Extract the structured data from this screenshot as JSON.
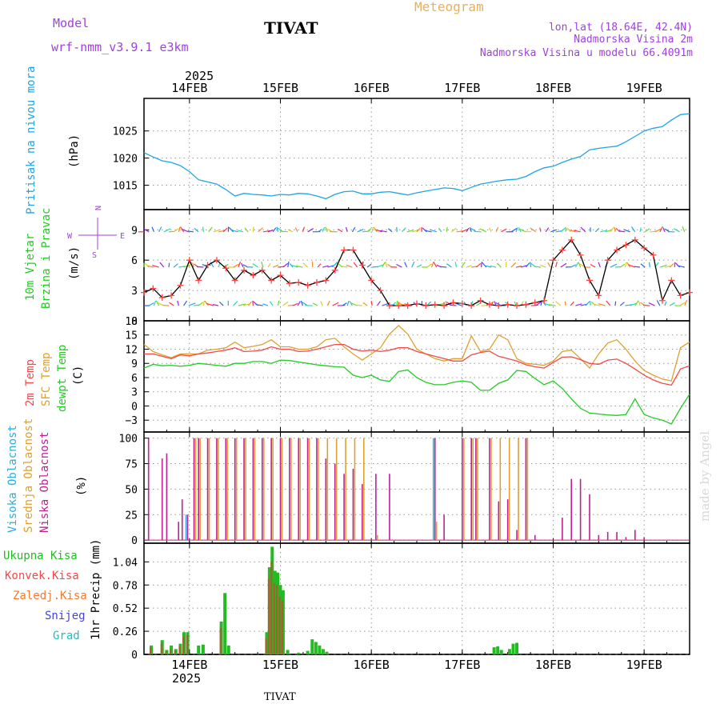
{
  "header": {
    "left_label": "Model",
    "model": "wrf-nmm_v3.9.1  e3km",
    "title": "TIVAT",
    "center_title": "Meteogram",
    "lonlat": "lon,lat (18.64E, 42.4N)",
    "elevation": "Nadmorska Visina 2m",
    "model_elevation": "Nadmorska Visina u modelu 66.4091m",
    "footer_station": "TIVAT",
    "watermark": "made by Angel"
  },
  "colors": {
    "pressure": "#1fa5e6",
    "wind_speed_black": "#000000",
    "wind_markers": "#ff4444",
    "temp2m": "#f04a4a",
    "sfc_temp": "#e0a030",
    "dewpt": "#22cc22",
    "cloud_high": "#2aaee0",
    "cloud_mid": "#e0a030",
    "cloud_low": "#c02090",
    "precip_total": "#22bb22",
    "precip_conv": "#f04a4a",
    "label_purple": "#a040e0"
  },
  "chart_data": [
    {
      "type": "line",
      "panel": "pressure",
      "title": "",
      "year_label": "2025",
      "ylabel_left": "Pritisak na nivou mora",
      "ylabel_unit": "(hPa)",
      "xlim": [
        -0.5,
        5.5
      ],
      "ylim": [
        1010.5,
        1031
      ],
      "x_ticks": [
        0,
        1,
        2,
        3,
        4,
        5
      ],
      "x_tick_labels": [
        "14FEB",
        "15FEB",
        "16FEB",
        "17FEB",
        "18FEB",
        "19FEB"
      ],
      "y_ticks": [
        1015,
        1020,
        1025
      ],
      "y_tick_labels": [
        "1015",
        "1020",
        "1025"
      ],
      "x": [
        -0.5,
        -0.4,
        -0.3,
        -0.2,
        -0.1,
        0,
        0.1,
        0.2,
        0.3,
        0.4,
        0.5,
        0.6,
        0.7,
        0.8,
        0.9,
        1,
        1.1,
        1.2,
        1.3,
        1.4,
        1.5,
        1.6,
        1.7,
        1.8,
        1.9,
        2,
        2.1,
        2.2,
        2.3,
        2.4,
        2.5,
        2.6,
        2.7,
        2.8,
        2.9,
        3,
        3.1,
        3.2,
        3.3,
        3.4,
        3.5,
        3.6,
        3.7,
        3.8,
        3.9,
        4,
        4.1,
        4.2,
        4.3,
        4.4,
        4.5,
        4.6,
        4.7,
        4.8,
        4.9,
        5,
        5.1,
        5.2,
        5.3,
        5.4,
        5.5
      ],
      "series": [
        {
          "name": "Pritisak",
          "values": [
            1021,
            1020.2,
            1019.5,
            1019.2,
            1018.6,
            1017.5,
            1016,
            1015.6,
            1015.2,
            1014.2,
            1013,
            1013.5,
            1013.3,
            1013.2,
            1013,
            1013.3,
            1013.2,
            1013.5,
            1013.4,
            1013,
            1012.5,
            1013.3,
            1013.8,
            1013.9,
            1013.4,
            1013.4,
            1013.7,
            1013.8,
            1013.5,
            1013.2,
            1013.6,
            1013.9,
            1014.2,
            1014.5,
            1014.4,
            1014,
            1014.6,
            1015.2,
            1015.5,
            1015.8,
            1016,
            1016.1,
            1016.6,
            1017.5,
            1018.2,
            1018.5,
            1019.2,
            1019.8,
            1020.3,
            1021.5,
            1021.8,
            1022,
            1022.2,
            1023,
            1024,
            1025,
            1025.5,
            1025.8,
            1027,
            1028,
            1028.2
          ]
        }
      ]
    },
    {
      "type": "line",
      "panel": "wind",
      "ylabel_left": [
        "10m Vjetar",
        "Brzina i Pravac"
      ],
      "ylabel_unit": "(m/s)",
      "compass": {
        "n": "N",
        "w": "W",
        "e": "E",
        "s": "S"
      },
      "xlim": [
        -0.5,
        5.5
      ],
      "ylim": [
        0,
        11
      ],
      "y_ticks": [
        0,
        3,
        6,
        9
      ],
      "y_tick_labels": [
        "0",
        "3",
        "6",
        "9"
      ],
      "x": [
        -0.5,
        -0.4,
        -0.3,
        -0.2,
        -0.1,
        0,
        0.1,
        0.2,
        0.3,
        0.4,
        0.5,
        0.6,
        0.7,
        0.8,
        0.9,
        1,
        1.1,
        1.2,
        1.3,
        1.4,
        1.5,
        1.6,
        1.7,
        1.8,
        1.9,
        2,
        2.1,
        2.2,
        2.3,
        2.4,
        2.5,
        2.6,
        2.7,
        2.8,
        2.9,
        3,
        3.1,
        3.2,
        3.3,
        3.4,
        3.5,
        3.6,
        3.7,
        3.8,
        3.9,
        4,
        4.1,
        4.2,
        4.3,
        4.4,
        4.5,
        4.6,
        4.7,
        4.8,
        4.9,
        5,
        5.1,
        5.2,
        5.3,
        5.4,
        5.5
      ],
      "series": [
        {
          "name": "Brzina",
          "values": [
            2.8,
            3.2,
            2.3,
            2.5,
            3.5,
            6,
            4,
            5.5,
            6,
            5.2,
            4,
            5,
            4.5,
            5,
            4,
            4.5,
            3.7,
            3.8,
            3.5,
            3.8,
            4,
            5,
            7,
            7,
            5.5,
            4,
            3,
            1.5,
            1.5,
            1.5,
            1.7,
            1.5,
            1.6,
            1.5,
            1.8,
            1.7,
            1.5,
            2,
            1.6,
            1.5,
            1.6,
            1.5,
            1.6,
            1.8,
            2,
            6,
            7,
            8,
            6.5,
            4,
            2.5,
            6,
            7,
            7.5,
            8,
            7.2,
            6.5,
            2,
            4,
            2.5,
            2.8
          ]
        }
      ],
      "arrow_rows": [
        1.5,
        5.3,
        8.8
      ]
    },
    {
      "type": "line",
      "panel": "temperature",
      "ylabel_left": [
        "2m Temp",
        "SFC Temp",
        "dewpt Temp"
      ],
      "ylabel_unit": "(C)",
      "xlim": [
        -0.5,
        5.5
      ],
      "ylim": [
        -5.5,
        18
      ],
      "y_ticks": [
        -3,
        0,
        3,
        6,
        9,
        12,
        15,
        18
      ],
      "y_tick_labels": [
        "−3",
        "0",
        "3",
        "6",
        "9",
        "12",
        "15",
        "18"
      ],
      "x": [
        -0.5,
        -0.4,
        -0.3,
        -0.2,
        -0.1,
        0,
        0.1,
        0.2,
        0.3,
        0.4,
        0.5,
        0.6,
        0.7,
        0.8,
        0.9,
        1,
        1.1,
        1.2,
        1.3,
        1.4,
        1.5,
        1.6,
        1.7,
        1.8,
        1.9,
        2,
        2.1,
        2.2,
        2.3,
        2.4,
        2.5,
        2.6,
        2.7,
        2.8,
        2.9,
        3,
        3.1,
        3.2,
        3.3,
        3.4,
        3.5,
        3.6,
        3.7,
        3.8,
        3.9,
        4,
        4.1,
        4.2,
        4.3,
        4.4,
        4.5,
        4.6,
        4.7,
        4.8,
        4.9,
        5,
        5.1,
        5.2,
        5.3,
        5.4,
        5.5
      ],
      "series": [
        {
          "name": "2m Temp",
          "values": [
            11,
            11,
            10.5,
            10,
            10.8,
            10.6,
            11,
            11.2,
            11.5,
            11.8,
            12.3,
            11.5,
            11.6,
            11.8,
            12.5,
            12,
            12,
            11.5,
            11.6,
            12,
            12.5,
            13,
            13,
            12,
            11.6,
            11.8,
            11.5,
            11.8,
            12.3,
            12.3,
            11.5,
            11,
            10.5,
            10,
            9.5,
            9.5,
            10.8,
            11.3,
            11.6,
            10.5,
            10,
            9.5,
            8.7,
            8.3,
            8,
            9.2,
            10.3,
            10.4,
            9.8,
            9,
            8.8,
            9.7,
            9.9,
            9,
            7.8,
            6.5,
            5.5,
            4.8,
            4.4,
            7.8,
            8.5
          ]
        },
        {
          "name": "SFC Temp",
          "values": [
            13,
            11.5,
            10.8,
            10.2,
            11,
            11,
            11,
            11.8,
            12,
            12.3,
            13.5,
            12.3,
            12.6,
            13,
            14,
            12.5,
            12.5,
            12,
            12,
            12.5,
            14,
            14.3,
            12.5,
            11,
            9.7,
            11,
            12.3,
            15.2,
            17,
            15.2,
            12,
            11,
            10,
            9.5,
            10,
            10,
            14.8,
            11.5,
            12,
            15,
            14,
            10,
            9,
            8.8,
            8.6,
            9.5,
            11.5,
            11.8,
            10,
            8,
            11,
            13.3,
            14,
            12,
            9.5,
            7.5,
            6.5,
            5.7,
            5.3,
            12.3,
            13.5
          ]
        },
        {
          "name": "dewpt Temp",
          "values": [
            8,
            8.8,
            8.5,
            8.6,
            8.4,
            8.6,
            9,
            8.8,
            8.6,
            8.4,
            9,
            9,
            9.4,
            9.4,
            9,
            9.7,
            9.6,
            9.3,
            9,
            8.7,
            8.5,
            8.3,
            8.2,
            6.5,
            6,
            6.5,
            5.5,
            5.2,
            7.3,
            7.6,
            6,
            5,
            4.5,
            4.5,
            5,
            5.3,
            5,
            3.3,
            3.3,
            4.8,
            5.5,
            7.5,
            7.3,
            5.8,
            4.5,
            5.3,
            3.7,
            1.5,
            -0.5,
            -1.5,
            -1.7,
            -1.9,
            -2,
            -1.8,
            1.5,
            -1.8,
            -2.5,
            -3,
            -3.8,
            -0.5,
            2.5
          ]
        }
      ]
    },
    {
      "type": "bar",
      "panel": "clouds",
      "ylabel_left": [
        "Visoka Oblacnost",
        "Srednja Oblacnost",
        "Niska  Oblacnost"
      ],
      "ylabel_unit": "(%)",
      "xlim": [
        -0.5,
        5.5
      ],
      "ylim": [
        -3,
        106
      ],
      "y_ticks": [
        0,
        25,
        50,
        75,
        100
      ],
      "y_tick_labels": [
        "0",
        "25",
        "50",
        "75",
        "100"
      ],
      "x": [
        -0.45,
        -0.3,
        -0.25,
        -0.12,
        -0.08,
        -0.02,
        0.05,
        0.1,
        0.2,
        0.3,
        0.4,
        0.5,
        0.6,
        0.7,
        0.8,
        0.9,
        1.0,
        1.1,
        1.2,
        1.3,
        1.4,
        1.5,
        1.6,
        1.7,
        1.8,
        1.9,
        2.05,
        2.2,
        2.7,
        2.8,
        3.0,
        3.1,
        3.15,
        3.3,
        3.4,
        3.5,
        3.6,
        3.7,
        3.8,
        3.9,
        4.0,
        4.1,
        4.2,
        4.3,
        4.4,
        4.5,
        4.6,
        4.7,
        4.8,
        4.9,
        5.0
      ],
      "series": [
        {
          "name": "Niska Oblacnost",
          "values": [
            100,
            80,
            85,
            18,
            40,
            25,
            100,
            100,
            100,
            100,
            100,
            100,
            100,
            100,
            100,
            100,
            100,
            100,
            100,
            100,
            100,
            80,
            75,
            65,
            70,
            55,
            65,
            65,
            100,
            25,
            100,
            100,
            100,
            100,
            38,
            40,
            10,
            100,
            5,
            0,
            0,
            22,
            60,
            60,
            45,
            5,
            8,
            8,
            3,
            10,
            3
          ]
        },
        {
          "name": "Srednja Oblacnost",
          "values": [
            0,
            0,
            0,
            0,
            0,
            0,
            100,
            100,
            100,
            100,
            100,
            100,
            100,
            100,
            100,
            100,
            100,
            100,
            100,
            100,
            100,
            100,
            100,
            100,
            100,
            100,
            5,
            0,
            18,
            0,
            100,
            100,
            100,
            100,
            100,
            100,
            100,
            100,
            0,
            0,
            0,
            0,
            0,
            0,
            0,
            0,
            0,
            0,
            0,
            0,
            0
          ]
        },
        {
          "name": "Visoka Oblacnost",
          "values": [
            0,
            0,
            0,
            0,
            0,
            25,
            0,
            0,
            0,
            0,
            0,
            0,
            0,
            0,
            0,
            0,
            0,
            0,
            0,
            0,
            0,
            0,
            0,
            0,
            0,
            0,
            0,
            0,
            100,
            0,
            0,
            0,
            0,
            0,
            0,
            0,
            0,
            0,
            0,
            0,
            0,
            0,
            0,
            0,
            0,
            0,
            0,
            0,
            0,
            0,
            0
          ]
        }
      ]
    },
    {
      "type": "bar",
      "panel": "precip",
      "ylabel_left": [
        "Ukupna  Kisa",
        "Konvek.Kisa",
        "Zaledj.Kisa",
        "Snijeg",
        "Grad"
      ],
      "ylabel_unit": "1hr Precip (mm)",
      "xlim": [
        -0.5,
        5.5
      ],
      "ylim": [
        0,
        1.25
      ],
      "y_ticks": [
        0,
        0.26,
        0.52,
        0.78,
        1.04
      ],
      "y_tick_labels": [
        "0",
        "0.26",
        "0.52",
        "0.78",
        "1.04"
      ],
      "x_ticks": [
        0,
        1,
        2,
        3,
        4,
        5
      ],
      "x_tick_labels": [
        "14FEB",
        "15FEB",
        "16FEB",
        "17FEB",
        "18FEB",
        "19FEB"
      ],
      "year_label": "2025",
      "x": [
        -0.42,
        -0.3,
        -0.25,
        -0.2,
        -0.15,
        -0.1,
        -0.06,
        -0.02,
        0.1,
        0.15,
        0.35,
        0.39,
        0.43,
        0.85,
        0.88,
        0.91,
        0.94,
        0.97,
        1.0,
        1.03,
        1.08,
        1.2,
        1.3,
        1.35,
        1.39,
        1.43,
        1.47,
        1.51,
        3.35,
        3.39,
        3.43,
        3.52,
        3.56,
        3.6
      ],
      "series": [
        {
          "name": "Ukupna Kisa",
          "values": [
            0.1,
            0.16,
            0.05,
            0.1,
            0.06,
            0.12,
            0.25,
            0.25,
            0.1,
            0.11,
            0.37,
            0.69,
            0.1,
            0.25,
            0.98,
            1.21,
            0.94,
            0.92,
            0.78,
            0.72,
            0.05,
            0.02,
            0.04,
            0.17,
            0.14,
            0.1,
            0.06,
            0.03,
            0.08,
            0.09,
            0.05,
            0.06,
            0.12,
            0.13
          ]
        },
        {
          "name": "Konvek.Kisa",
          "values": [
            0.08,
            0.12,
            0.03,
            0.06,
            0.04,
            0.09,
            0.2,
            0.22,
            0,
            0,
            0.3,
            0,
            0,
            0.18,
            0.85,
            1.05,
            0.8,
            0.78,
            0.65,
            0.6,
            0,
            0,
            0,
            0,
            0,
            0,
            0,
            0,
            0,
            0,
            0,
            0,
            0,
            0
          ]
        }
      ]
    }
  ]
}
